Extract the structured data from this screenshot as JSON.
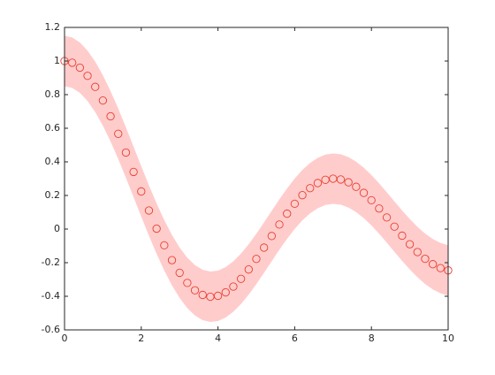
{
  "chart_data": {
    "type": "scatter",
    "x": [
      0,
      0.2,
      0.4,
      0.6,
      0.8,
      1,
      1.2,
      1.4,
      1.6,
      1.8,
      2,
      2.2,
      2.4,
      2.6,
      2.8,
      3,
      3.2,
      3.4,
      3.6,
      3.8,
      4,
      4.2,
      4.4,
      4.6,
      4.8,
      5,
      5.2,
      5.4,
      5.6,
      5.8,
      6,
      6.2,
      6.4,
      6.6,
      6.8,
      7,
      7.2,
      7.4,
      7.6,
      7.8,
      8,
      8.2,
      8.4,
      8.6,
      8.8,
      9,
      9.2,
      9.4,
      9.6,
      9.8,
      10
    ],
    "values": [
      1,
      0.99,
      0.9604,
      0.912,
      0.8463,
      0.7652,
      0.6711,
      0.5669,
      0.4554,
      0.34,
      0.2239,
      0.1104,
      0.0025,
      -0.0968,
      -0.185,
      -0.2601,
      -0.3202,
      -0.3643,
      -0.3918,
      -0.4026,
      -0.3971,
      -0.3766,
      -0.3423,
      -0.2961,
      -0.2404,
      -0.1776,
      -0.1103,
      -0.0412,
      0.027,
      0.0917,
      0.1506,
      0.2017,
      0.2433,
      0.274,
      0.2931,
      0.3001,
      0.2951,
      0.2786,
      0.2516,
      0.2154,
      0.1717,
      0.1222,
      0.0692,
      0.0146,
      -0.0392,
      -0.0903,
      -0.1367,
      -0.1768,
      -0.209,
      -0.2323,
      -0.2459
    ],
    "color": "#e8402f",
    "band": {
      "color": "#ffcccc",
      "halfwidth": 0.15
    },
    "xlim": [
      0,
      10
    ],
    "xticks": [
      0,
      2,
      4,
      6,
      8,
      10
    ],
    "ylim": [
      -0.6,
      1.2
    ],
    "yticks": [
      -0.6,
      -0.4,
      -0.2,
      0,
      0.2,
      0.4,
      0.6,
      0.8,
      1,
      1.2
    ]
  }
}
